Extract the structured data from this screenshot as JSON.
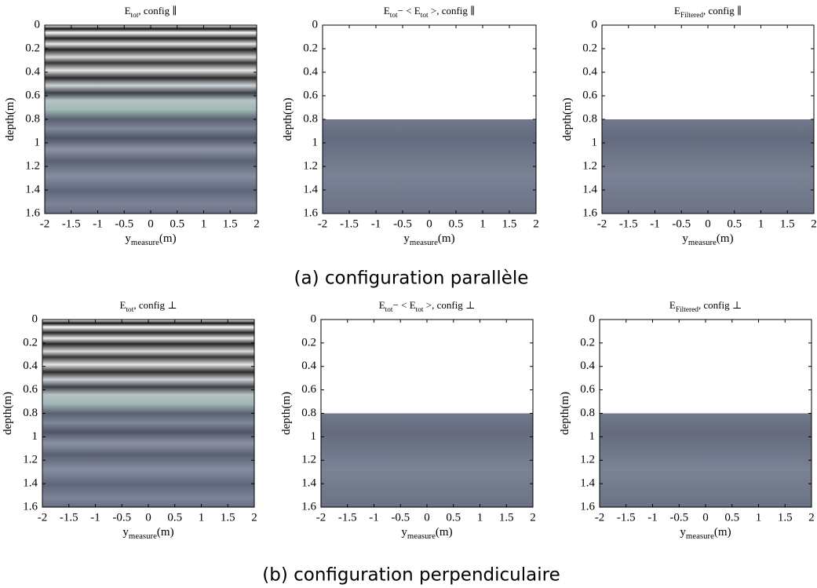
{
  "chart_data": [
    {
      "type": "image",
      "title": [
        {
          "text": "E"
        },
        {
          "sub": "tot"
        },
        {
          "text": ", config ∥"
        }
      ],
      "xlabel": [
        {
          "text": "y"
        },
        {
          "sub": "measure"
        },
        {
          "text": "(m)"
        }
      ],
      "ylabel": "depth(m)",
      "xlim": [
        -2,
        2
      ],
      "ylim": [
        0,
        1.6
      ],
      "yinverted": true,
      "xticks": [
        -2,
        -1.5,
        -1,
        -0.5,
        0,
        0.5,
        1,
        1.5,
        2
      ],
      "yticks": [
        0,
        0.2,
        0.4,
        0.6,
        0.8,
        1,
        1.2,
        1.4,
        1.6
      ]
    },
    {
      "type": "image",
      "title": [
        {
          "text": "E"
        },
        {
          "sub": "tot"
        },
        {
          "text": "− < E"
        },
        {
          "sub": "tot"
        },
        {
          "text": " >, config ∥"
        }
      ],
      "xlabel": [
        {
          "text": "y"
        },
        {
          "sub": "measure"
        },
        {
          "text": "(m)"
        }
      ],
      "ylabel": "depth(m)",
      "xlim": [
        -2,
        2
      ],
      "ylim": [
        0,
        1.6
      ],
      "yinverted": true,
      "mask_depth": 0.8,
      "xticks": [
        -2,
        -1.5,
        -1,
        -0.5,
        0,
        0.5,
        1,
        1.5,
        2
      ],
      "yticks": [
        0,
        0.2,
        0.4,
        0.6,
        0.8,
        1,
        1.2,
        1.4,
        1.6
      ]
    },
    {
      "type": "image",
      "title": [
        {
          "text": "E"
        },
        {
          "sub": "Filtered"
        },
        {
          "text": ", config ∥"
        }
      ],
      "xlabel": [
        {
          "text": "y"
        },
        {
          "sub": "measure"
        },
        {
          "text": "(m)"
        }
      ],
      "ylabel": "depth(m)",
      "xlim": [
        -2,
        2
      ],
      "ylim": [
        0,
        1.6
      ],
      "yinverted": true,
      "mask_depth": 0.8,
      "xticks": [
        -2,
        -1.5,
        -1,
        -0.5,
        0,
        0.5,
        1,
        1.5,
        2
      ],
      "yticks": [
        0,
        0.2,
        0.4,
        0.6,
        0.8,
        1,
        1.2,
        1.4,
        1.6
      ]
    },
    {
      "type": "image",
      "title": [
        {
          "text": "E"
        },
        {
          "sub": "tot"
        },
        {
          "text": ", config ⊥"
        }
      ],
      "xlabel": [
        {
          "text": "y"
        },
        {
          "sub": "measure"
        },
        {
          "text": "(m)"
        }
      ],
      "ylabel": "depth(m)",
      "xlim": [
        -2,
        2
      ],
      "ylim": [
        0,
        1.6
      ],
      "yinverted": true,
      "xticks": [
        -2,
        -1.5,
        -1,
        -0.5,
        0,
        0.5,
        1,
        1.5,
        2
      ],
      "yticks": [
        0,
        0.2,
        0.4,
        0.6,
        0.8,
        1,
        1.2,
        1.4,
        1.6
      ]
    },
    {
      "type": "image",
      "title": [
        {
          "text": "E"
        },
        {
          "sub": "tot"
        },
        {
          "text": "− < E"
        },
        {
          "sub": "tot"
        },
        {
          "text": " >, config ⊥"
        }
      ],
      "xlabel": [
        {
          "text": "y"
        },
        {
          "sub": "measure"
        },
        {
          "text": "(m)"
        }
      ],
      "ylabel": "depth(m)",
      "xlim": [
        -2,
        2
      ],
      "ylim": [
        0,
        1.6
      ],
      "yinverted": true,
      "mask_depth": 0.8,
      "xticks": [
        -2,
        -1.5,
        -1,
        -0.5,
        0,
        0.5,
        1,
        1.5,
        2
      ],
      "yticks": [
        0,
        0.2,
        0.4,
        0.6,
        0.8,
        1,
        1.2,
        1.4,
        1.6
      ]
    },
    {
      "type": "image",
      "title": [
        {
          "text": "E"
        },
        {
          "sub": "Filtered"
        },
        {
          "text": ", config ⊥"
        }
      ],
      "xlabel": [
        {
          "text": "y"
        },
        {
          "sub": "measure"
        },
        {
          "text": "(m)"
        }
      ],
      "ylabel": "depth(m)",
      "xlim": [
        -2,
        2
      ],
      "ylim": [
        0,
        1.6
      ],
      "yinverted": true,
      "mask_depth": 0.8,
      "xticks": [
        -2,
        -1.5,
        -1,
        -0.5,
        0,
        0.5,
        1,
        1.5,
        2
      ],
      "yticks": [
        0,
        0.2,
        0.4,
        0.6,
        0.8,
        1,
        1.2,
        1.4,
        1.6
      ]
    }
  ],
  "captions": [
    "(a) configuration parallèle",
    "(b) configuration perpendiculaire"
  ]
}
